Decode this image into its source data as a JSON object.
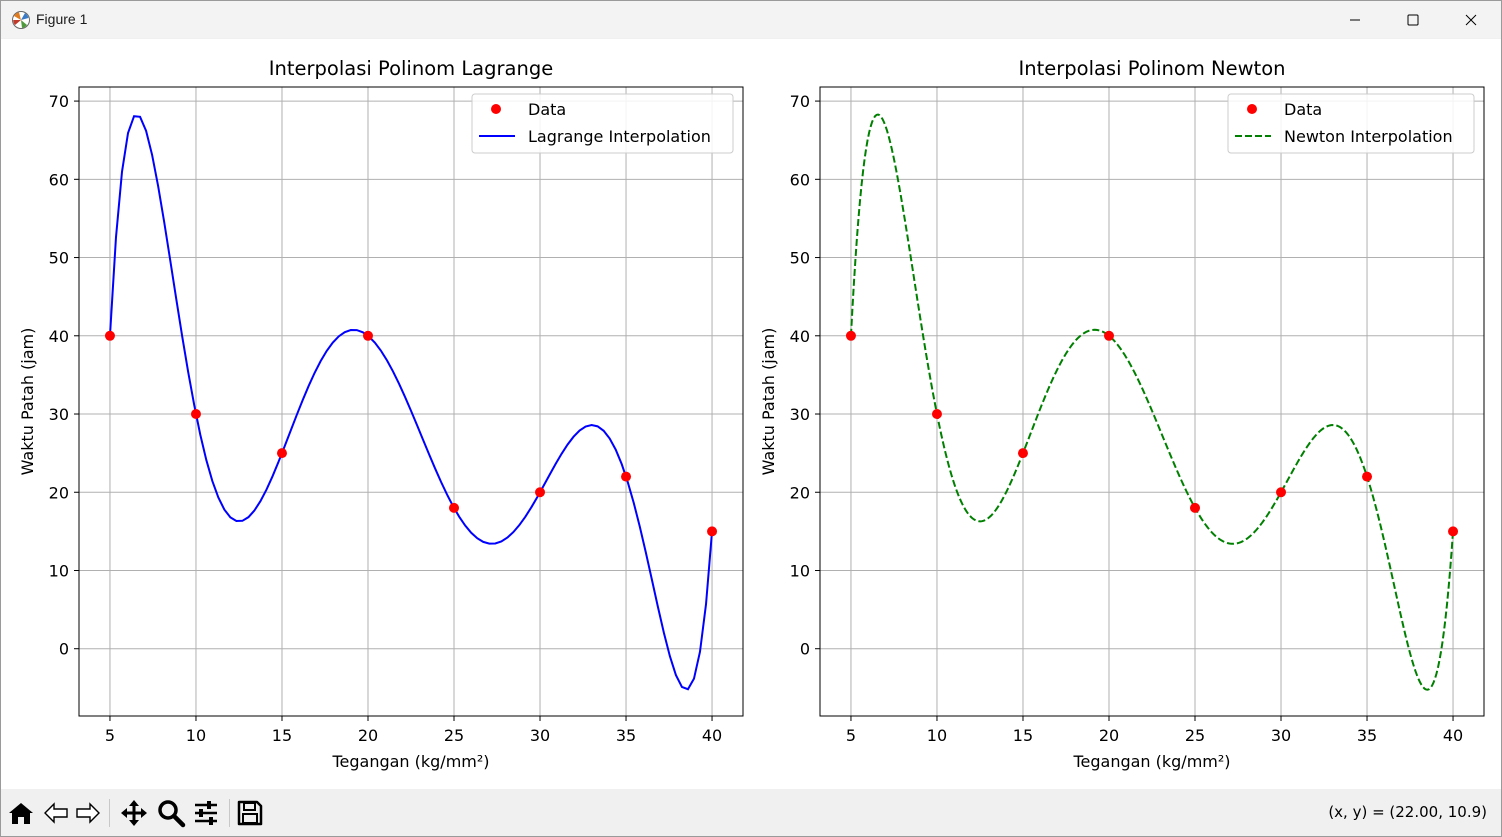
{
  "window": {
    "title": "Figure 1"
  },
  "toolbar": {
    "coords": "(x, y) = (22.00, 10.9)",
    "buttons": [
      "home",
      "back",
      "forward",
      "pan",
      "zoom",
      "configure-subplots",
      "save"
    ]
  },
  "chart_data": [
    {
      "type": "line",
      "title": "Interpolasi Polinom Lagrange",
      "xlabel": "Tegangan (kg/mm²)",
      "ylabel": "Waktu Patah (jam)",
      "xlim": [
        3.2,
        41.8
      ],
      "ylim": [
        -8.6,
        71.8
      ],
      "xticks": [
        "5",
        "10",
        "15",
        "20",
        "25",
        "30",
        "35",
        "40"
      ],
      "yticks": [
        "0",
        "10",
        "20",
        "30",
        "40",
        "50",
        "60",
        "70"
      ],
      "grid": true,
      "legend": "top-right",
      "series": [
        {
          "name": "Data",
          "kind": "scatter",
          "color": "#ff0000",
          "x": [
            5,
            10,
            15,
            20,
            25,
            30,
            35,
            40
          ],
          "y": [
            40,
            30,
            25,
            40,
            18,
            20,
            22,
            15
          ]
        },
        {
          "name": "Lagrange Interpolation",
          "kind": "line",
          "style": "solid",
          "color": "#0000ff"
        }
      ]
    },
    {
      "type": "line",
      "title": "Interpolasi Polinom Newton",
      "xlabel": "Tegangan (kg/mm²)",
      "ylabel": "Waktu Patah (jam)",
      "xlim": [
        3.2,
        41.8
      ],
      "ylim": [
        -8.6,
        71.8
      ],
      "xticks": [
        "5",
        "10",
        "15",
        "20",
        "25",
        "30",
        "35",
        "40"
      ],
      "yticks": [
        "0",
        "10",
        "20",
        "30",
        "40",
        "50",
        "60",
        "70"
      ],
      "grid": true,
      "legend": "top-right",
      "series": [
        {
          "name": "Data",
          "kind": "scatter",
          "color": "#ff0000",
          "x": [
            5,
            10,
            15,
            20,
            25,
            30,
            35,
            40
          ],
          "y": [
            40,
            30,
            25,
            40,
            18,
            20,
            22,
            15
          ]
        },
        {
          "name": "Newton Interpolation",
          "kind": "line",
          "style": "dashed",
          "color": "#008000"
        }
      ]
    }
  ]
}
